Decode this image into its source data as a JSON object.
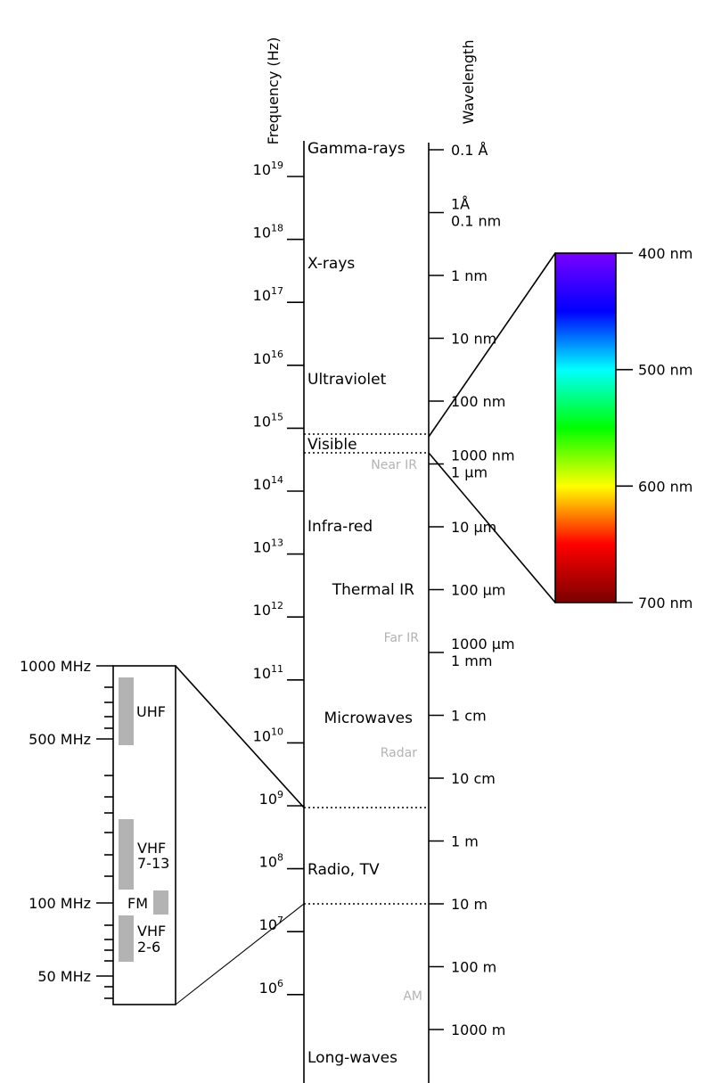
{
  "axes": {
    "frequency_label": "Frequency (Hz)",
    "wavelength_label": "Wavelength"
  },
  "frequency_ticks": [
    {
      "base": "10",
      "exp": "19"
    },
    {
      "base": "10",
      "exp": "18"
    },
    {
      "base": "10",
      "exp": "17"
    },
    {
      "base": "10",
      "exp": "16"
    },
    {
      "base": "10",
      "exp": "15"
    },
    {
      "base": "10",
      "exp": "14"
    },
    {
      "base": "10",
      "exp": "13"
    },
    {
      "base": "10",
      "exp": "12"
    },
    {
      "base": "10",
      "exp": "11"
    },
    {
      "base": "10",
      "exp": "10"
    },
    {
      "base": "10",
      "exp": "9"
    },
    {
      "base": "10",
      "exp": "8"
    },
    {
      "base": "10",
      "exp": "7"
    },
    {
      "base": "10",
      "exp": "6"
    }
  ],
  "wavelength_ticks": [
    [
      "0.1 Å"
    ],
    [
      "1Å",
      "0.1 nm"
    ],
    [
      "1 nm"
    ],
    [
      "10 nm"
    ],
    [
      "100 nm"
    ],
    [
      "1000 nm",
      "1 µm"
    ],
    [
      "10 µm"
    ],
    [
      "100 µm"
    ],
    [
      "1000 µm",
      "1 mm"
    ],
    [
      "1 cm"
    ],
    [
      "10 cm"
    ],
    [
      "1 m"
    ],
    [
      "10 m"
    ],
    [
      "100 m"
    ],
    [
      "1000 m"
    ]
  ],
  "bands": [
    {
      "name": "Gamma-rays",
      "style": "main"
    },
    {
      "name": "X-rays",
      "style": "main"
    },
    {
      "name": "Ultraviolet",
      "style": "main"
    },
    {
      "name": "Visible",
      "style": "main"
    },
    {
      "name": "Near IR",
      "style": "sub"
    },
    {
      "name": "Infra-red",
      "style": "main"
    },
    {
      "name": "Thermal IR",
      "style": "main"
    },
    {
      "name": "Far IR",
      "style": "sub"
    },
    {
      "name": "Microwaves",
      "style": "main"
    },
    {
      "name": "Radar",
      "style": "sub"
    },
    {
      "name": "Radio, TV",
      "style": "main"
    },
    {
      "name": "AM",
      "style": "sub"
    },
    {
      "name": "Long-waves",
      "style": "main"
    }
  ],
  "visible_inset": {
    "labels": [
      "400 nm",
      "500 nm",
      "600 nm",
      "700 nm"
    ],
    "colors": [
      "#7a00ff",
      "#0000ff",
      "#00ffff",
      "#00ff00",
      "#ffff00",
      "#ff0000",
      "#7a0000"
    ]
  },
  "radio_inset": {
    "labels": [
      "1000 MHz",
      "500 MHz",
      "100 MHz",
      "50 MHz"
    ],
    "bands": [
      {
        "lines": [
          "UHF"
        ]
      },
      {
        "lines": [
          "VHF",
          "7-13"
        ]
      },
      {
        "lines": [
          "FM"
        ]
      },
      {
        "lines": [
          "VHF",
          "2-6"
        ]
      }
    ],
    "band_color": "#b3b3b3"
  },
  "colors": {
    "line": "#000000",
    "sub_label": "#b3b3b3"
  }
}
